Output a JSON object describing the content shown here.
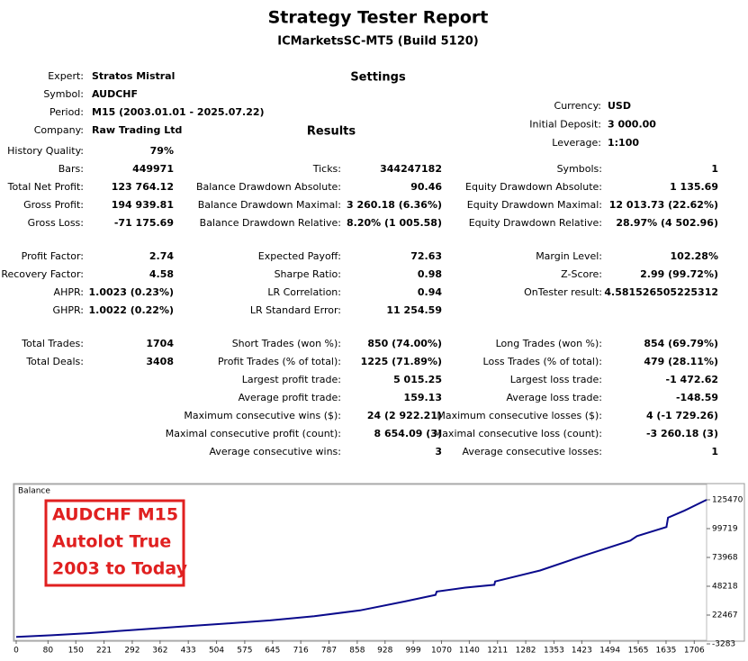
{
  "header": {
    "title": "Strategy Tester Report",
    "subtitle": "ICMarketsSC-MT5 (Build 5120)"
  },
  "settings": {
    "heading": "Settings",
    "left": [
      {
        "label": "Expert:",
        "value": "Stratos Mistral"
      },
      {
        "label": "Symbol:",
        "value": "AUDCHF"
      },
      {
        "label": "Period:",
        "value": "M15 (2003.01.01 - 2025.07.22)"
      },
      {
        "label": "Company:",
        "value": "Raw Trading Ltd"
      }
    ],
    "right": [
      {
        "label": "Currency:",
        "value": "USD"
      },
      {
        "label": "Initial Deposit:",
        "value": "3 000.00"
      },
      {
        "label": "Leverage:",
        "value": "1:100"
      }
    ]
  },
  "results": {
    "heading": "Results",
    "columns": [
      {
        "groups": [
          [
            {
              "label": "History Quality:",
              "value": "79%"
            },
            {
              "label": "Bars:",
              "value": "449971"
            },
            {
              "label": "Total Net Profit:",
              "value": "123 764.12"
            },
            {
              "label": "Gross Profit:",
              "value": "194 939.81"
            },
            {
              "label": "Gross Loss:",
              "value": "-71 175.69"
            }
          ],
          [
            {
              "label": "Profit Factor:",
              "value": "2.74"
            },
            {
              "label": "Recovery Factor:",
              "value": "4.58"
            },
            {
              "label": "AHPR:",
              "value": "1.0023 (0.23%)"
            },
            {
              "label": "GHPR:",
              "value": "1.0022 (0.22%)"
            }
          ],
          [
            {
              "label": "Total Trades:",
              "value": "1704"
            },
            {
              "label": "Total Deals:",
              "value": "3408"
            }
          ]
        ]
      },
      {
        "groups": [
          [
            {
              "label": "Ticks:",
              "value": "344247182"
            },
            {
              "label": "Balance Drawdown Absolute:",
              "value": "90.46"
            },
            {
              "label": "Balance Drawdown Maximal:",
              "value": "3 260.18 (6.36%)"
            },
            {
              "label": "Balance Drawdown Relative:",
              "value": "8.20% (1 005.58)"
            }
          ],
          [
            {
              "label": "Expected Payoff:",
              "value": "72.63"
            },
            {
              "label": "Sharpe Ratio:",
              "value": "0.98"
            },
            {
              "label": "LR Correlation:",
              "value": "0.94"
            },
            {
              "label": "LR Standard Error:",
              "value": "11 254.59"
            }
          ],
          [
            {
              "label": "Short Trades (won %):",
              "value": "850 (74.00%)"
            },
            {
              "label": "Profit Trades (% of total):",
              "value": "1225 (71.89%)"
            },
            {
              "label": "Largest profit trade:",
              "value": "5 015.25"
            },
            {
              "label": "Average profit trade:",
              "value": "159.13"
            },
            {
              "label": "Maximum consecutive wins ($):",
              "value": "24 (2 922.21)"
            },
            {
              "label": "Maximal consecutive profit (count):",
              "value": "8 654.09 (3)"
            },
            {
              "label": "Average consecutive wins:",
              "value": "3"
            }
          ]
        ]
      },
      {
        "groups": [
          [
            {
              "label": "Symbols:",
              "value": "1"
            },
            {
              "label": "Equity Drawdown Absolute:",
              "value": "1 135.69"
            },
            {
              "label": "Equity Drawdown Maximal:",
              "value": "12 013.73 (22.62%)"
            },
            {
              "label": "Equity Drawdown Relative:",
              "value": "28.97% (4 502.96)"
            }
          ],
          [
            {
              "label": "Margin Level:",
              "value": "102.28%"
            },
            {
              "label": "Z-Score:",
              "value": "2.99 (99.72%)"
            },
            {
              "label": "OnTester result:",
              "value": "4.581526505225312"
            }
          ],
          [
            {
              "label": "Long Trades (won %):",
              "value": "854 (69.79%)"
            },
            {
              "label": "Loss Trades (% of total):",
              "value": "479 (28.11%)"
            },
            {
              "label": "Largest loss trade:",
              "value": "-1 472.62"
            },
            {
              "label": "Average loss trade:",
              "value": "-148.59"
            },
            {
              "label": "Maximum consecutive losses ($):",
              "value": "4 (-1 729.26)"
            },
            {
              "label": "Maximal consecutive loss (count):",
              "value": "-3 260.18 (3)"
            },
            {
              "label": "Average consecutive losses:",
              "value": "1"
            }
          ]
        ]
      }
    ]
  },
  "chart_data": {
    "type": "line",
    "annotation": [
      "AUDCHF M15",
      "Autolot True",
      "2003 to Today"
    ],
    "x": [
      0,
      90,
      186,
      300,
      412,
      525,
      639,
      750,
      865,
      979,
      1055,
      1058,
      1130,
      1203,
      1205,
      1318,
      1432,
      1545,
      1562,
      1636,
      1640,
      1681,
      1737
    ],
    "series": [
      {
        "name": "Balance",
        "color": "#0a0a8c",
        "values": [
          3000,
          4500,
          6400,
          9300,
          12070,
          14800,
          17700,
          21500,
          26650,
          34750,
          40500,
          43500,
          47000,
          49500,
          52500,
          62300,
          76060,
          89020,
          93000,
          101170,
          109500,
          115750,
          125470
        ]
      }
    ],
    "xlim": [
      0,
      1737
    ],
    "ylim": [
      -3283,
      125470
    ],
    "xticks": [
      0,
      80,
      150,
      221,
      292,
      362,
      433,
      504,
      575,
      645,
      716,
      787,
      858,
      928,
      999,
      1070,
      1140,
      1211,
      1282,
      1353,
      1423,
      1494,
      1565,
      1635,
      1706
    ],
    "yticks": [
      -3283,
      22467,
      48218,
      73968,
      99719,
      125470
    ]
  }
}
